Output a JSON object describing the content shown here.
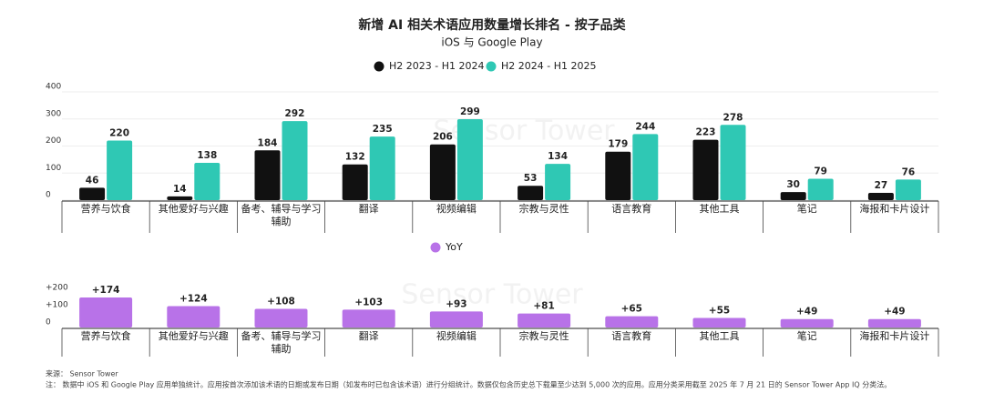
{
  "chart_data": [
    {
      "type": "bar",
      "title": "新增 AI 相关术语应用数量增长排名 - 按子品类",
      "subtitle": "iOS 与 Google Play",
      "categories": [
        "营养与饮食",
        "其他爱好与兴趣",
        "备考、辅导与学习辅助",
        "翻译",
        "视频编辑",
        "宗教与灵性",
        "语言教育",
        "其他工具",
        "笔记",
        "海报和卡片设计"
      ],
      "series": [
        {
          "name": "H2 2023 - H1 2024",
          "color": "#111111",
          "values": [
            46,
            14,
            184,
            132,
            206,
            53,
            179,
            223,
            30,
            27
          ]
        },
        {
          "name": "H2 2024 - H1 2025",
          "color": "#2fc8b4",
          "values": [
            220,
            138,
            292,
            235,
            299,
            134,
            244,
            278,
            79,
            76
          ]
        }
      ],
      "ylim": [
        0,
        400
      ],
      "yticks": [
        0,
        100,
        200,
        300,
        400
      ],
      "grid": true,
      "legend": "top"
    },
    {
      "type": "bar",
      "categories": [
        "营养与饮食",
        "其他爱好与兴趣",
        "备考、辅导与学习辅助",
        "翻译",
        "视频编辑",
        "宗教与灵性",
        "语言教育",
        "其他工具",
        "笔记",
        "海报和卡片设计"
      ],
      "series": [
        {
          "name": "YoY",
          "color": "#b872e8",
          "values": [
            174,
            124,
            108,
            103,
            93,
            81,
            65,
            55,
            49,
            49
          ],
          "value_labels": [
            "+174",
            "+124",
            "+108",
            "+103",
            "+93",
            "+81",
            "+65",
            "+55",
            "+49",
            "+49"
          ]
        }
      ],
      "ylim": [
        0,
        200
      ],
      "yticks": [
        0,
        {
          "value": 100,
          "label": "+100"
        },
        {
          "value": 200,
          "label": "+200"
        }
      ],
      "grid": false,
      "legend": "top"
    }
  ],
  "watermark": "Sensor Tower",
  "source": "来源： Sensor Tower",
  "note": "注： 数据中 iOS 和 Google Play 应用单独统计。应用按首次添加该术语的日期或发布日期（如发布时已包含该术语）进行分组统计。数据仅包含历史总下载量至少达到 5,000 次的应用。应用分类采用截至 2025 年 7 月 21 日的 Sensor Tower App IQ 分类法。"
}
